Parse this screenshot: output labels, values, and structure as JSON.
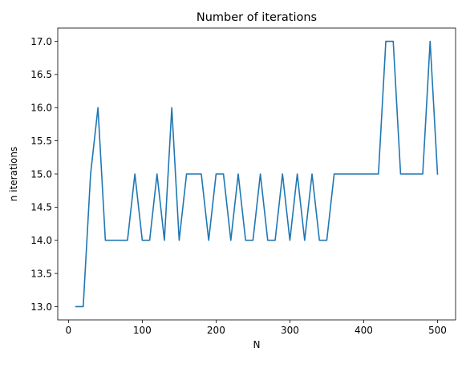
{
  "chart_data": {
    "type": "line",
    "title": "Number of iterations",
    "xlabel": "N",
    "ylabel": "n iterations",
    "xlim": [
      -14.5,
      524.5
    ],
    "ylim": [
      12.8,
      17.2
    ],
    "xticks": [
      0,
      100,
      200,
      300,
      400,
      500
    ],
    "yticks": [
      13.0,
      13.5,
      14.0,
      14.5,
      15.0,
      15.5,
      16.0,
      16.5,
      17.0
    ],
    "xtick_labels": [
      "0",
      "100",
      "200",
      "300",
      "400",
      "500"
    ],
    "ytick_labels": [
      "13.0",
      "13.5",
      "14.0",
      "14.5",
      "15.0",
      "15.5",
      "16.0",
      "16.5",
      "17.0"
    ],
    "grid": false,
    "legend": false,
    "series": [
      {
        "color": "#1f77b4",
        "x": [
          10,
          20,
          30,
          40,
          50,
          60,
          70,
          80,
          90,
          100,
          110,
          120,
          130,
          140,
          150,
          160,
          170,
          180,
          190,
          200,
          210,
          220,
          230,
          240,
          250,
          260,
          270,
          280,
          290,
          300,
          310,
          320,
          330,
          340,
          350,
          360,
          370,
          380,
          390,
          400,
          410,
          420,
          430,
          440,
          450,
          460,
          470,
          480,
          490,
          500
        ],
        "y": [
          13,
          13,
          15,
          16,
          14,
          14,
          14,
          14,
          15,
          14,
          14,
          15,
          14,
          16,
          14,
          15,
          15,
          15,
          14,
          15,
          15,
          14,
          15,
          14,
          14,
          15,
          14,
          14,
          15,
          14,
          15,
          14,
          15,
          14,
          14,
          15,
          15,
          15,
          15,
          15,
          15,
          15,
          17,
          17,
          15,
          15,
          15,
          15,
          17,
          15
        ]
      }
    ]
  }
}
